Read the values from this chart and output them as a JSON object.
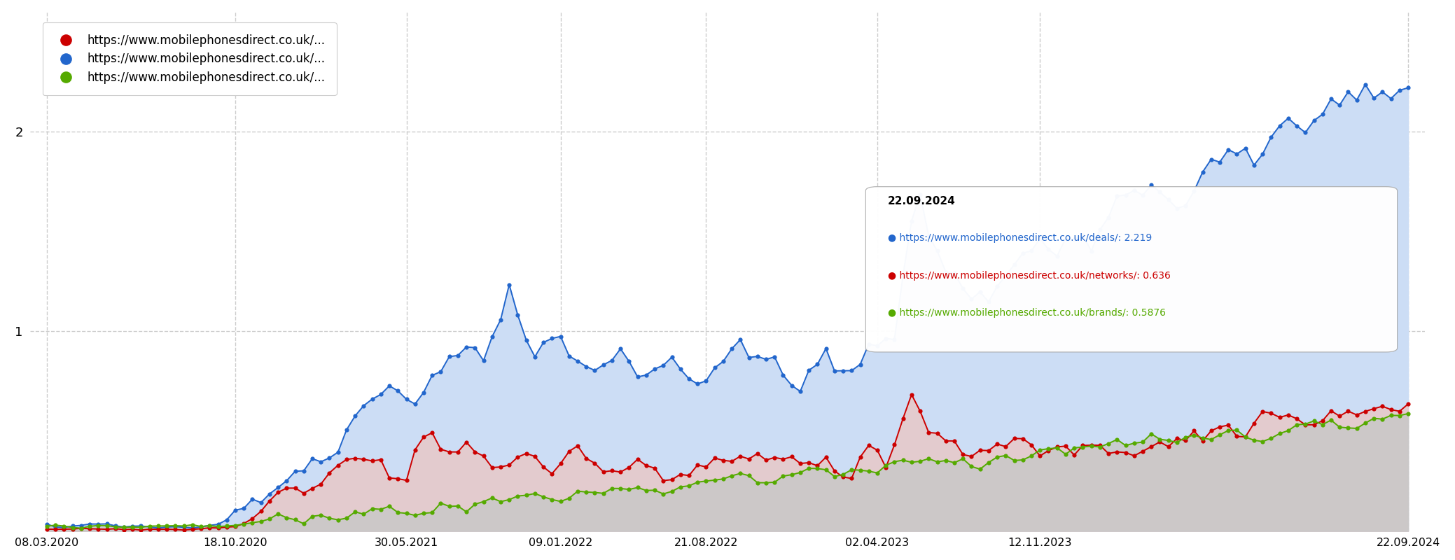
{
  "x_labels": [
    "08.03.2020",
    "18.10.2020",
    "30.05.2021",
    "09.01.2022",
    "21.08.2022",
    "02.04.2023",
    "12.11.2023",
    "22.09.2024"
  ],
  "y_ticks": [
    1,
    2
  ],
  "ylim": [
    0,
    2.6
  ],
  "legend_labels": [
    "https://www.mobilephonesdirect.co.uk/...",
    "https://www.mobilephonesdirect.co.uk/...",
    "https://www.mobilephonesdirect.co.uk/..."
  ],
  "legend_colors": [
    "#cc0000",
    "#2266cc",
    "#55aa00"
  ],
  "tooltip_date": "22.09.2024",
  "tooltip_lines": [
    {
      "color": "#2266cc",
      "text": "https://www.mobilephonesdirect.co.uk/deals/: 2.219"
    },
    {
      "color": "#cc0000",
      "text": "https://www.mobilephonesdirect.co.uk/networks/: 0.636"
    },
    {
      "color": "#55aa00",
      "text": "https://www.mobilephonesdirect.co.uk/brands/: 0.5876"
    }
  ],
  "blue_color": "#2266cc",
  "red_color": "#cc0000",
  "green_color": "#55aa00",
  "blue_fill": "#ccddf5",
  "red_fill": "#e8c8c8",
  "green_fill": "#c8c8c8",
  "background_color": "#ffffff",
  "grid_color": "#cccccc"
}
